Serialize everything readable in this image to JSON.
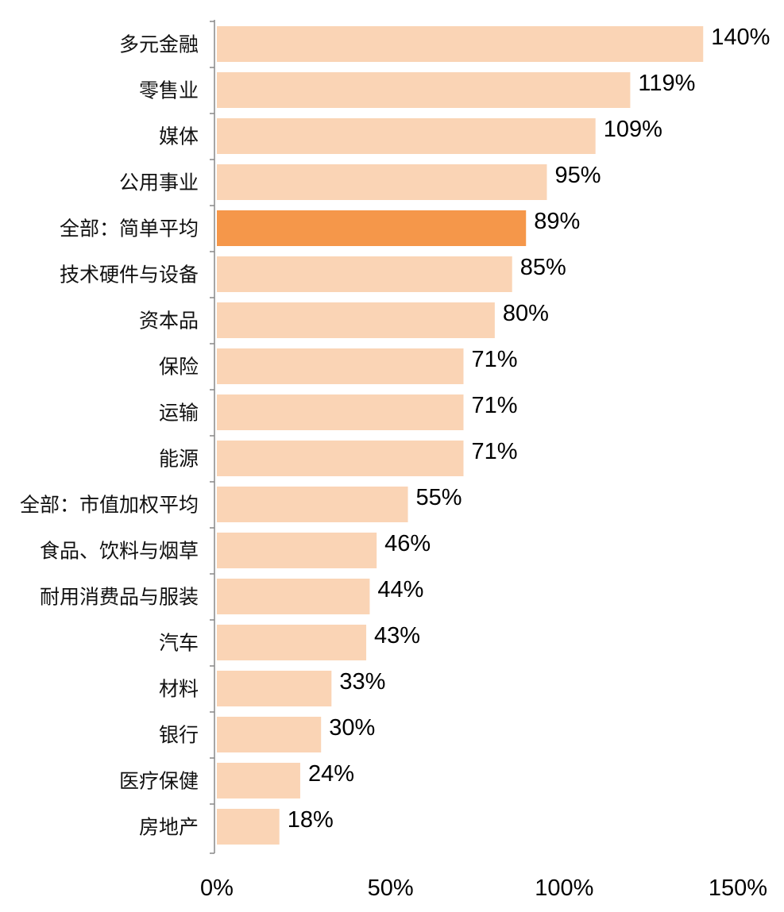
{
  "chart_data": {
    "type": "bar",
    "orientation": "horizontal",
    "categories": [
      "多元金融",
      "零售业",
      "媒体",
      "公用事业",
      "全部：简单平均",
      "技术硬件与设备",
      "资本品",
      "保险",
      "运输",
      "能源",
      "全部：市值加权平均",
      "食品、饮料与烟草",
      "耐用消费品与服装",
      "汽车",
      "材料",
      "银行",
      "医疗保健",
      "房地产"
    ],
    "values": [
      140,
      119,
      109,
      95,
      89,
      85,
      80,
      71,
      71,
      71,
      55,
      46,
      44,
      43,
      33,
      30,
      24,
      18
    ],
    "value_labels": [
      "140%",
      "119%",
      "109%",
      "95%",
      "89%",
      "85%",
      "80%",
      "71%",
      "71%",
      "71%",
      "55%",
      "46%",
      "44%",
      "43%",
      "33%",
      "30%",
      "24%",
      "18%"
    ],
    "highlight_category": "全部：简单平均",
    "x_ticks": [
      "0%",
      "50%",
      "100%",
      "150%"
    ],
    "xlim": [
      0,
      150
    ],
    "colors": {
      "bar": "#fad4b5",
      "highlight": "#f5974a",
      "axis": "#888888"
    },
    "grid": false,
    "legend": "none"
  }
}
